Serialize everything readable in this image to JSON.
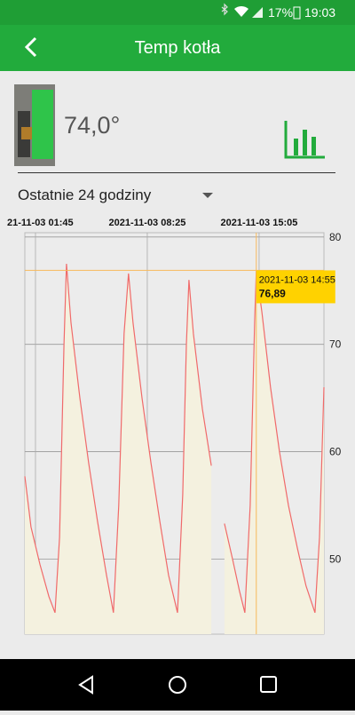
{
  "status_bar": {
    "battery": "17%",
    "time": "19:03"
  },
  "header": {
    "title": "Temp kotła"
  },
  "current": {
    "value": "74,0°"
  },
  "period": {
    "label": "Ostatnie 24 godziny"
  },
  "chart_data": {
    "type": "line",
    "x": [
      "2021-11-03 01:07",
      "2021-11-03 01:29",
      "2021-11-03 02:01",
      "2021-11-03 02:33",
      "2021-11-03 02:55",
      "2021-11-03 03:11",
      "2021-11-03 03:27",
      "2021-11-03 03:36",
      "2021-11-03 03:52",
      "2021-11-03 04:24",
      "2021-11-03 04:55",
      "2021-11-03 05:27",
      "2021-11-03 05:59",
      "2021-11-03 06:24",
      "2021-11-03 06:43",
      "2021-11-03 07:02",
      "2021-11-03 07:18",
      "2021-11-03 07:34",
      "2021-11-03 08:06",
      "2021-11-03 08:38",
      "2021-11-03 09:10",
      "2021-11-03 09:41",
      "2021-11-03 10:13",
      "2021-11-03 10:32",
      "2021-11-03 10:45",
      "2021-11-03 10:54",
      "2021-11-03 11:10",
      "2021-11-03 11:42",
      "2021-11-03 12:14",
      "2021-11-03 12:36",
      "2021-11-03 13:01",
      "2021-11-03 13:30",
      "2021-11-03 13:55",
      "2021-11-03 14:14",
      "2021-11-03 14:33",
      "2021-11-03 14:49",
      "2021-11-03 14:55",
      "2021-11-03 15:15",
      "2021-11-03 15:46",
      "2021-11-03 16:18",
      "2021-11-03 16:50",
      "2021-11-03 17:22",
      "2021-11-03 17:53",
      "2021-11-03 18:25",
      "2021-11-03 18:41",
      "2021-11-03 18:57"
    ],
    "values": [
      57.7,
      53,
      49.5,
      46.5,
      45,
      52,
      70,
      77.5,
      72,
      65,
      59,
      53.5,
      48.5,
      45,
      55,
      71,
      76.6,
      72,
      65,
      59,
      53.5,
      48.5,
      45,
      56,
      70,
      76,
      71,
      64,
      58.7,
      null,
      53.3,
      50,
      47,
      45,
      55,
      72,
      76.89,
      73,
      66,
      60,
      55,
      51,
      47.5,
      45,
      52,
      66
    ],
    "color": "#f06a6a",
    "fill": "#f4f1df",
    "xlim": [
      "2021-11-03 01:07",
      "2021-11-03 18:57"
    ],
    "xticks": [
      {
        "value": "2021-11-03 01:45",
        "label": "21-11-03 01:45"
      },
      "2021-11-03 08:25",
      "2021-11-03 15:05"
    ],
    "ylim": [
      43,
      80.4
    ],
    "yticks": [
      50,
      60,
      70,
      80
    ],
    "grid": true,
    "tooltip": {
      "x": "2021-11-03 14:55",
      "value": 76.89,
      "value_label": "76,89",
      "color": "#ffd200",
      "line_color": "#f7b95c"
    }
  }
}
